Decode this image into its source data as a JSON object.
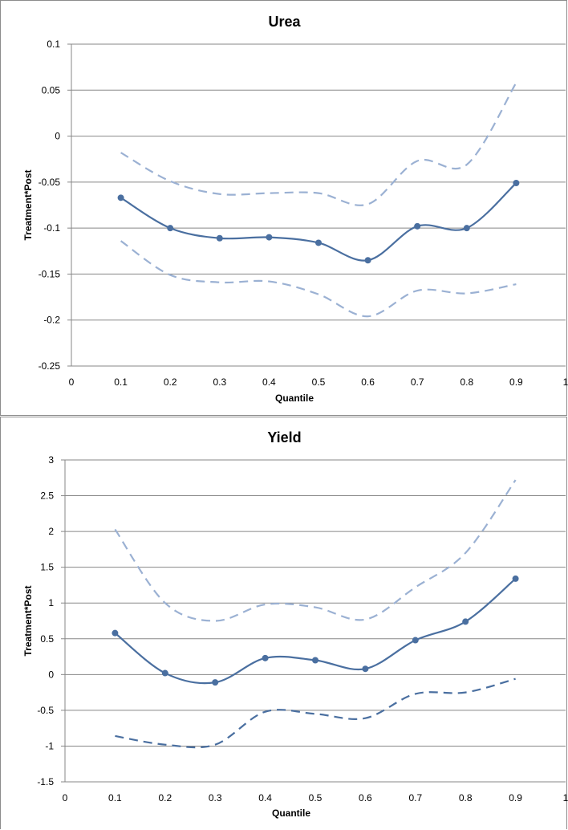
{
  "colors": {
    "series": "#4a6fa0",
    "ci": "#9bb1d3",
    "grid": "#878787"
  },
  "chart_data": [
    {
      "type": "line",
      "title": "Urea",
      "xlabel": "Quantile",
      "ylabel": "Treatment*Post",
      "xlim": [
        0,
        1
      ],
      "ylim": [
        -0.25,
        0.1
      ],
      "xticks": [
        0,
        0.1,
        0.2,
        0.3,
        0.4,
        0.5,
        0.6,
        0.7,
        0.8,
        0.9,
        1
      ],
      "xtick_labels": [
        "0",
        "0.1",
        "0.2",
        "0.3",
        "0.4",
        "0.5",
        "0.6",
        "0.7",
        "0.8",
        "0.9",
        "1"
      ],
      "yticks": [
        -0.25,
        -0.2,
        -0.15,
        -0.1,
        -0.05,
        0,
        0.05,
        0.1
      ],
      "ytick_labels": [
        "-0.25",
        "-0.2",
        "-0.15",
        "-0.1",
        "-0.05",
        "0",
        "0.05",
        "0.1"
      ],
      "grid": true,
      "x": [
        0.1,
        0.2,
        0.3,
        0.4,
        0.5,
        0.6,
        0.7,
        0.8,
        0.9
      ],
      "series": [
        {
          "role": "estimate",
          "values": [
            -0.067,
            -0.1,
            -0.111,
            -0.11,
            -0.116,
            -0.135,
            -0.098,
            -0.1,
            -0.051
          ]
        },
        {
          "role": "upper",
          "values": [
            -0.018,
            -0.049,
            -0.063,
            -0.062,
            -0.062,
            -0.074,
            -0.027,
            -0.031,
            0.058
          ]
        },
        {
          "role": "lower",
          "values": [
            -0.114,
            -0.151,
            -0.159,
            -0.158,
            -0.172,
            -0.196,
            -0.168,
            -0.171,
            -0.161
          ]
        }
      ]
    },
    {
      "type": "line",
      "title": "Yield",
      "xlabel": "Quantile",
      "ylabel": "Treatment*Post",
      "xlim": [
        0,
        1
      ],
      "ylim": [
        -1.5,
        3
      ],
      "xticks": [
        0,
        0.1,
        0.2,
        0.3,
        0.4,
        0.5,
        0.6,
        0.7,
        0.8,
        0.9,
        1
      ],
      "xtick_labels": [
        "0",
        "0.1",
        "0.2",
        "0.3",
        "0.4",
        "0.5",
        "0.6",
        "0.7",
        "0.8",
        "0.9",
        "1"
      ],
      "yticks": [
        -1.5,
        -1,
        -0.5,
        0,
        0.5,
        1,
        1.5,
        2,
        2.5,
        3
      ],
      "ytick_labels": [
        "-1.5",
        "-1",
        "-0.5",
        "0",
        "0.5",
        "1",
        "1.5",
        "2",
        "2.5",
        "3"
      ],
      "grid": true,
      "x": [
        0.1,
        0.2,
        0.3,
        0.4,
        0.5,
        0.6,
        0.7,
        0.8,
        0.9
      ],
      "series": [
        {
          "role": "estimate",
          "values": [
            0.58,
            0.02,
            -0.11,
            0.23,
            0.2,
            0.08,
            0.48,
            0.74,
            1.34
          ]
        },
        {
          "role": "upper",
          "values": [
            2.03,
            1.0,
            0.75,
            0.98,
            0.94,
            0.77,
            1.22,
            1.7,
            2.72
          ]
        },
        {
          "role": "lower",
          "values": [
            -0.86,
            -0.98,
            -0.98,
            -0.52,
            -0.55,
            -0.61,
            -0.27,
            -0.25,
            -0.06
          ]
        }
      ]
    }
  ]
}
